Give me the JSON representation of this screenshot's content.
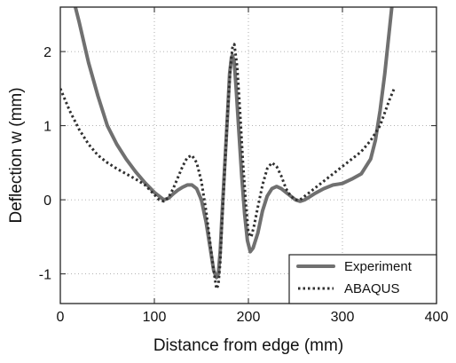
{
  "chart_data": {
    "type": "line",
    "title": "",
    "xlabel": "Distance from edge (mm)",
    "ylabel": "Deflection w (mm)",
    "xlim": [
      0,
      400
    ],
    "ylim": [
      -1.4,
      2.6
    ],
    "xticks": [
      0,
      100,
      200,
      300,
      400
    ],
    "yticks": [
      -1,
      0,
      1,
      2
    ],
    "grid": true,
    "legend": "bottom-right",
    "series": [
      {
        "name": "Experiment",
        "style": "solid",
        "color": "#707070",
        "x": [
          10,
          20,
          30,
          40,
          50,
          60,
          70,
          80,
          90,
          100,
          110,
          115,
          120,
          125,
          130,
          135,
          140,
          145,
          150,
          155,
          160,
          163,
          166,
          168,
          170,
          172,
          175,
          178,
          180,
          182,
          183,
          185,
          187,
          190,
          193,
          196,
          199,
          202,
          205,
          210,
          215,
          220,
          225,
          230,
          235,
          240,
          245,
          250,
          255,
          260,
          265,
          270,
          280,
          290,
          300,
          310,
          320,
          330,
          335,
          340,
          345,
          350,
          355
        ],
        "y": [
          2.9,
          2.4,
          1.85,
          1.4,
          1.0,
          0.75,
          0.55,
          0.38,
          0.23,
          0.1,
          0.0,
          0.02,
          0.08,
          0.13,
          0.17,
          0.2,
          0.2,
          0.15,
          0.0,
          -0.3,
          -0.7,
          -0.95,
          -1.05,
          -1.0,
          -0.7,
          -0.2,
          0.5,
          1.2,
          1.7,
          1.92,
          1.95,
          1.85,
          1.5,
          0.9,
          0.3,
          -0.2,
          -0.55,
          -0.7,
          -0.65,
          -0.45,
          -0.15,
          0.05,
          0.15,
          0.18,
          0.15,
          0.1,
          0.05,
          0.0,
          -0.02,
          0.0,
          0.04,
          0.08,
          0.15,
          0.2,
          0.22,
          0.28,
          0.35,
          0.55,
          0.8,
          1.2,
          1.7,
          2.3,
          2.9
        ]
      },
      {
        "name": "ABAQUS",
        "style": "dotted",
        "color": "#303030",
        "x": [
          0,
          10,
          20,
          30,
          40,
          50,
          60,
          70,
          80,
          90,
          100,
          105,
          110,
          115,
          120,
          125,
          130,
          135,
          140,
          145,
          150,
          155,
          160,
          163,
          166,
          168,
          170,
          172,
          175,
          178,
          181,
          183,
          185,
          188,
          191,
          194,
          197,
          200,
          203,
          206,
          210,
          215,
          220,
          225,
          230,
          235,
          240,
          245,
          250,
          255,
          260,
          270,
          280,
          290,
          300,
          310,
          320,
          330,
          340,
          350,
          355
        ],
        "y": [
          1.5,
          1.2,
          0.95,
          0.75,
          0.6,
          0.5,
          0.42,
          0.35,
          0.28,
          0.2,
          0.07,
          0.0,
          -0.02,
          0.03,
          0.15,
          0.3,
          0.45,
          0.57,
          0.6,
          0.5,
          0.25,
          -0.15,
          -0.65,
          -0.95,
          -1.2,
          -1.15,
          -0.85,
          -0.3,
          0.45,
          1.2,
          1.8,
          2.05,
          2.1,
          1.8,
          1.2,
          0.55,
          0.0,
          -0.45,
          -0.5,
          -0.35,
          -0.1,
          0.2,
          0.42,
          0.5,
          0.45,
          0.32,
          0.15,
          0.05,
          0.0,
          0.0,
          0.05,
          0.15,
          0.25,
          0.35,
          0.45,
          0.55,
          0.65,
          0.8,
          1.0,
          1.35,
          1.5
        ]
      }
    ]
  }
}
